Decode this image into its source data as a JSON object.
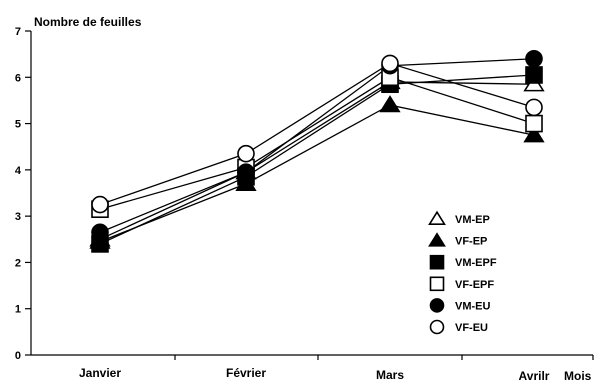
{
  "chart_data": {
    "type": "line",
    "title": "",
    "ylabel": "Nombre de feuilles",
    "xlabel": "Mois",
    "categories": [
      "Janvier",
      "Février",
      "Mars",
      "Avrilr"
    ],
    "ylim": [
      0,
      7
    ],
    "yticks": [
      0,
      1,
      2,
      3,
      4,
      5,
      6,
      7
    ],
    "grid": false,
    "legend_position": "bottom-right",
    "series": [
      {
        "name": "VM-EP",
        "marker": "triangle-open",
        "values": [
          2.5,
          3.95,
          5.9,
          5.85
        ]
      },
      {
        "name": "VF-EP",
        "marker": "triangle-filled",
        "values": [
          2.45,
          3.7,
          5.4,
          4.75
        ]
      },
      {
        "name": "VM-EPF",
        "marker": "square-filled",
        "values": [
          2.4,
          3.85,
          5.85,
          6.05
        ]
      },
      {
        "name": "VF-EPF",
        "marker": "square-open",
        "values": [
          3.15,
          4.05,
          6.0,
          5.0
        ]
      },
      {
        "name": "VM-EU",
        "marker": "circle-filled",
        "values": [
          2.65,
          3.95,
          6.25,
          6.4
        ]
      },
      {
        "name": "VF-EU",
        "marker": "circle-open",
        "values": [
          3.25,
          4.35,
          6.3,
          5.35
        ]
      }
    ]
  },
  "colors": {
    "ink": "#000000",
    "paper": "#ffffff"
  }
}
